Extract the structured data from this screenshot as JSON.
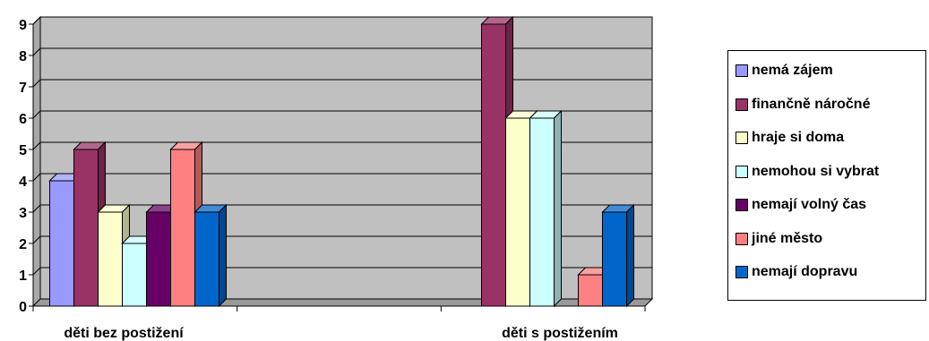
{
  "chart_data": {
    "type": "bar",
    "style": "3d-clustered-column",
    "categories": [
      "děti bez postižení",
      "děti s postižením"
    ],
    "series": [
      {
        "name": "nemá zájem",
        "values": [
          4,
          0
        ],
        "color": "#9999FF"
      },
      {
        "name": "finančně náročné",
        "values": [
          5,
          9
        ],
        "color": "#993366"
      },
      {
        "name": "hraje si doma",
        "values": [
          3,
          6
        ],
        "color": "#FFFFCC"
      },
      {
        "name": "nemohou si vybrat",
        "values": [
          2,
          6
        ],
        "color": "#CCFFFF"
      },
      {
        "name": "nemají volný čas",
        "values": [
          3,
          0
        ],
        "color": "#660066"
      },
      {
        "name": "jiné město",
        "values": [
          5,
          1
        ],
        "color": "#FF8080"
      },
      {
        "name": "nemají dopravu",
        "values": [
          3,
          3
        ],
        "color": "#0066CC"
      }
    ],
    "ylim": [
      0,
      9
    ],
    "yticks": [
      "0",
      "1",
      "2",
      "3",
      "4",
      "5",
      "6",
      "7",
      "8",
      "9"
    ],
    "grid": true,
    "plot_area_color": "#C0C0C0",
    "legend_position": "right"
  }
}
